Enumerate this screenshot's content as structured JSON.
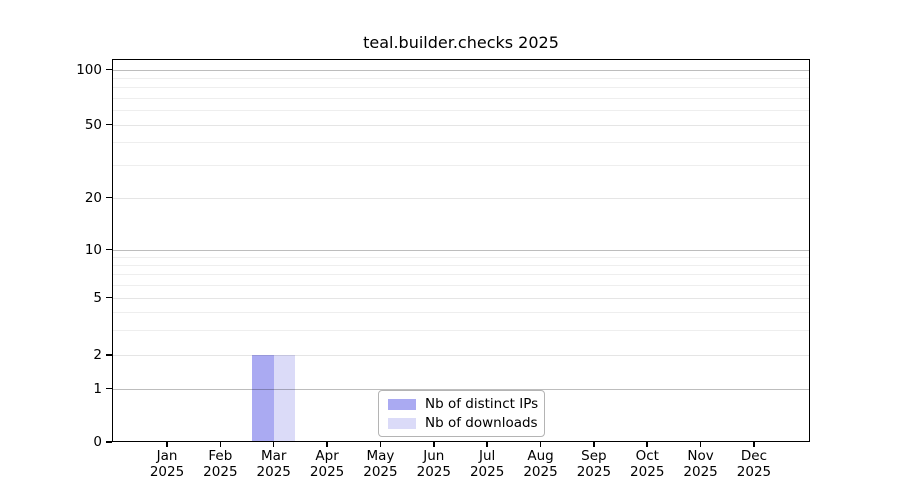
{
  "chart_data": {
    "type": "bar",
    "title": "teal.builder.checks 2025",
    "x_tick_months": [
      "Jan",
      "Feb",
      "Mar",
      "Apr",
      "May",
      "Jun",
      "Jul",
      "Aug",
      "Sep",
      "Oct",
      "Nov",
      "Dec"
    ],
    "x_tick_year": "2025",
    "y_ticks": [
      0,
      1,
      2,
      5,
      10,
      20,
      50,
      100
    ],
    "y_tick_labels": [
      "0",
      "1",
      "2",
      "5",
      "10",
      "20",
      "50",
      "100"
    ],
    "ylim": [
      0,
      100
    ],
    "y_scale": "log-like with zero baseline",
    "grid": "horizontal only; faint minor lines at integers, darker lines at 1/10/100; drawn over bars",
    "legend_position": "lower center inside plot",
    "series": [
      {
        "name": "Nb of distinct IPs",
        "color": "#aaaaf2",
        "values": [
          0,
          0,
          2,
          0,
          0,
          0,
          0,
          0,
          0,
          0,
          0,
          0
        ]
      },
      {
        "name": "Nb of downloads",
        "color": "#dbdbf8",
        "values": [
          0,
          0,
          2,
          0,
          0,
          0,
          0,
          0,
          0,
          0,
          0,
          0
        ]
      }
    ],
    "colors": {
      "spine": "#000000",
      "decade_grid": "#c3c3c3",
      "minor_grid": "#ededed"
    }
  }
}
